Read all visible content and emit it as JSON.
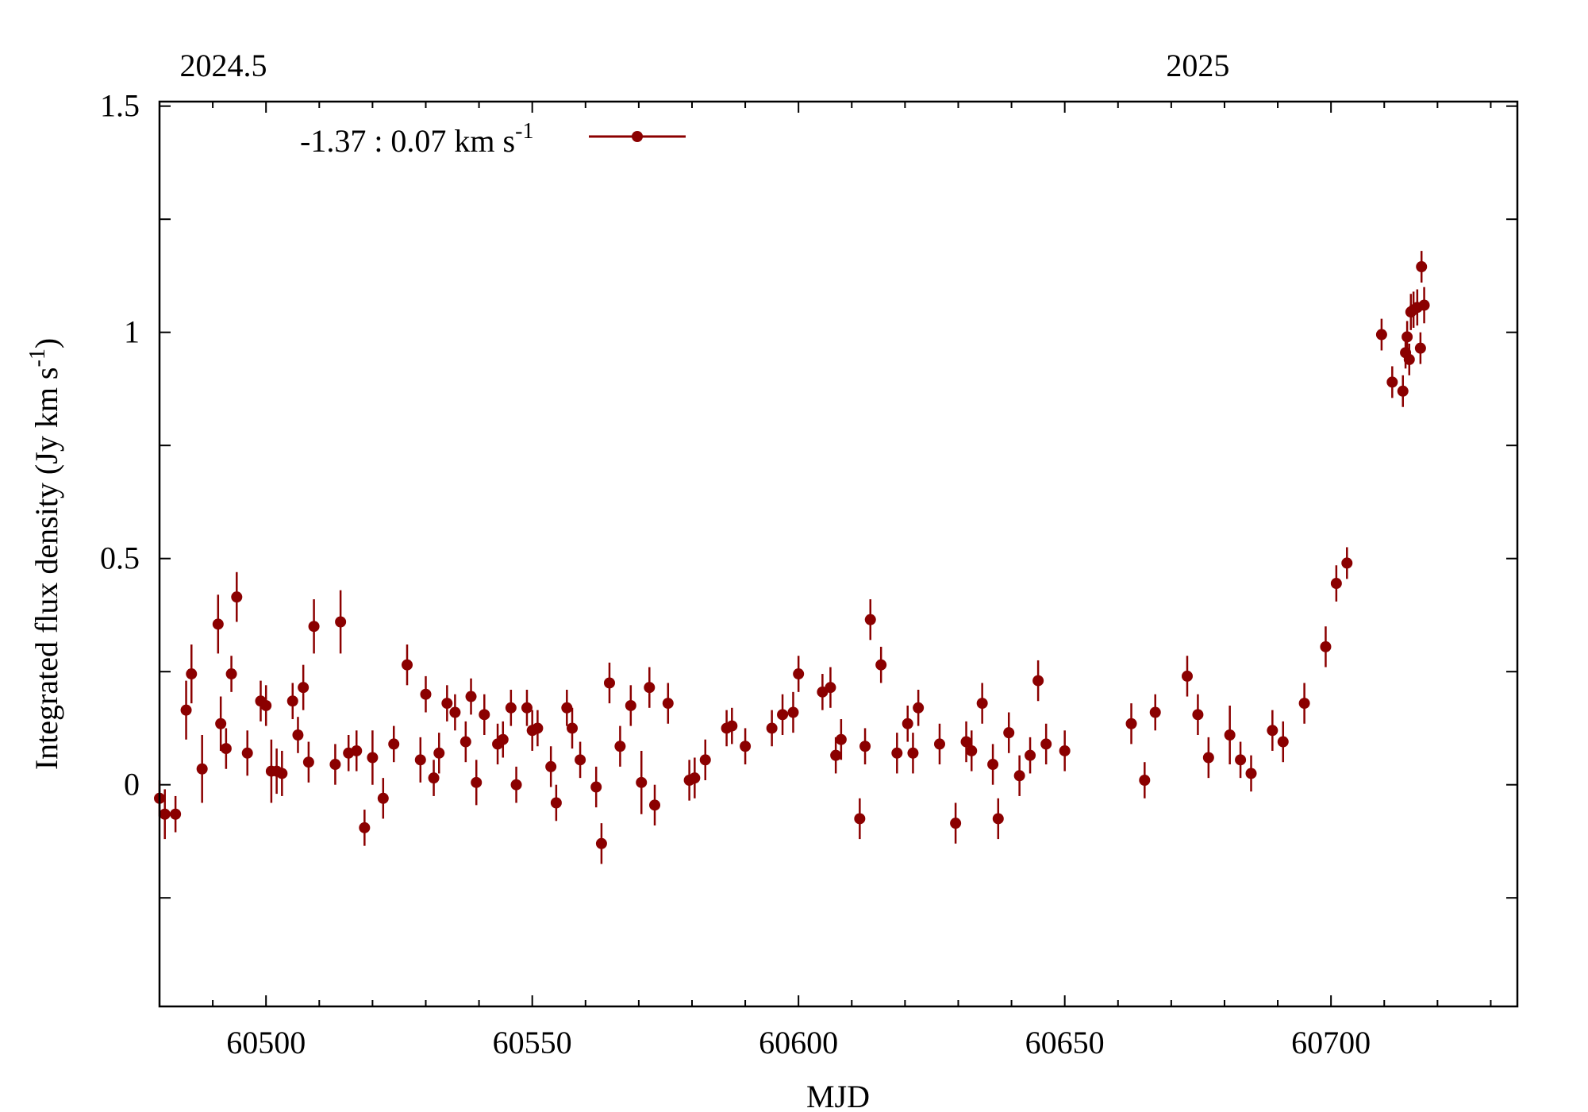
{
  "chart_data": {
    "type": "scatter",
    "xlabel": "MJD",
    "ylabel": "Integrated flux density (Jy km s",
    "ylabel_sup": "-1",
    "ylabel_close": ")",
    "xlim": [
      60480,
      60735
    ],
    "ylim": [
      -0.49,
      1.51
    ],
    "x_ticks": [
      60500,
      60550,
      60600,
      60650,
      60700
    ],
    "x_minor_ticks": [
      60490,
      60510,
      60520,
      60530,
      60540,
      60560,
      60570,
      60580,
      60590,
      60610,
      60620,
      60630,
      60640,
      60660,
      60670,
      60680,
      60690,
      60710,
      60720,
      60730
    ],
    "y_ticks": [
      0,
      0.5,
      1,
      1.5
    ],
    "y_tick_labels": [
      "0",
      "0.5",
      "1",
      "1.5"
    ],
    "y_minor_ticks": [
      -0.25,
      0.25,
      0.75,
      1.25
    ],
    "top_axis": {
      "ticks": [
        60492,
        60675
      ],
      "labels": [
        "2024.5",
        "2025"
      ]
    },
    "legend": {
      "position": "top-left",
      "symbol": "point-with-errorbar"
    },
    "series": [
      {
        "name": "-1.37 : 0.07 km s",
        "name_sup": "-1",
        "color": "#8b0000",
        "points": [
          {
            "x": 60480,
            "y": -0.03,
            "err": 0.04
          },
          {
            "x": 60481,
            "y": -0.065,
            "err": 0.055
          },
          {
            "x": 60483,
            "y": -0.065,
            "err": 0.04
          },
          {
            "x": 60485,
            "y": 0.165,
            "err": 0.065
          },
          {
            "x": 60486,
            "y": 0.245,
            "err": 0.065
          },
          {
            "x": 60488,
            "y": 0.035,
            "err": 0.075
          },
          {
            "x": 60491,
            "y": 0.355,
            "err": 0.065
          },
          {
            "x": 60491.5,
            "y": 0.135,
            "err": 0.06
          },
          {
            "x": 60492.5,
            "y": 0.08,
            "err": 0.045
          },
          {
            "x": 60493.5,
            "y": 0.245,
            "err": 0.04
          },
          {
            "x": 60494.5,
            "y": 0.415,
            "err": 0.055
          },
          {
            "x": 60496.5,
            "y": 0.07,
            "err": 0.05
          },
          {
            "x": 60499,
            "y": 0.185,
            "err": 0.045
          },
          {
            "x": 60500,
            "y": 0.175,
            "err": 0.045
          },
          {
            "x": 60501,
            "y": 0.03,
            "err": 0.07
          },
          {
            "x": 60502,
            "y": 0.03,
            "err": 0.05
          },
          {
            "x": 60503,
            "y": 0.025,
            "err": 0.05
          },
          {
            "x": 60505,
            "y": 0.185,
            "err": 0.04
          },
          {
            "x": 60506,
            "y": 0.11,
            "err": 0.04
          },
          {
            "x": 60507,
            "y": 0.215,
            "err": 0.05
          },
          {
            "x": 60508,
            "y": 0.05,
            "err": 0.045
          },
          {
            "x": 60509,
            "y": 0.35,
            "err": 0.06
          },
          {
            "x": 60513,
            "y": 0.045,
            "err": 0.045
          },
          {
            "x": 60514,
            "y": 0.36,
            "err": 0.07
          },
          {
            "x": 60515.5,
            "y": 0.07,
            "err": 0.04
          },
          {
            "x": 60517,
            "y": 0.075,
            "err": 0.045
          },
          {
            "x": 60518.5,
            "y": -0.095,
            "err": 0.04
          },
          {
            "x": 60520,
            "y": 0.06,
            "err": 0.06
          },
          {
            "x": 60522,
            "y": -0.03,
            "err": 0.045
          },
          {
            "x": 60524,
            "y": 0.09,
            "err": 0.04
          },
          {
            "x": 60526.5,
            "y": 0.265,
            "err": 0.045
          },
          {
            "x": 60529,
            "y": 0.055,
            "err": 0.05
          },
          {
            "x": 60530,
            "y": 0.2,
            "err": 0.04
          },
          {
            "x": 60531.5,
            "y": 0.015,
            "err": 0.04
          },
          {
            "x": 60532.5,
            "y": 0.07,
            "err": 0.045
          },
          {
            "x": 60534,
            "y": 0.18,
            "err": 0.04
          },
          {
            "x": 60535.5,
            "y": 0.16,
            "err": 0.04
          },
          {
            "x": 60537.5,
            "y": 0.095,
            "err": 0.045
          },
          {
            "x": 60538.5,
            "y": 0.195,
            "err": 0.04
          },
          {
            "x": 60539.5,
            "y": 0.005,
            "err": 0.05
          },
          {
            "x": 60541,
            "y": 0.155,
            "err": 0.045
          },
          {
            "x": 60543.5,
            "y": 0.09,
            "err": 0.045
          },
          {
            "x": 60544.5,
            "y": 0.1,
            "err": 0.04
          },
          {
            "x": 60546,
            "y": 0.17,
            "err": 0.04
          },
          {
            "x": 60547,
            "y": 0.0,
            "err": 0.04
          },
          {
            "x": 60549,
            "y": 0.17,
            "err": 0.04
          },
          {
            "x": 60550,
            "y": 0.12,
            "err": 0.045
          },
          {
            "x": 60551,
            "y": 0.125,
            "err": 0.04
          },
          {
            "x": 60553.5,
            "y": 0.04,
            "err": 0.045
          },
          {
            "x": 60554.5,
            "y": -0.04,
            "err": 0.04
          },
          {
            "x": 60556.5,
            "y": 0.17,
            "err": 0.04
          },
          {
            "x": 60557.5,
            "y": 0.125,
            "err": 0.045
          },
          {
            "x": 60559,
            "y": 0.055,
            "err": 0.04
          },
          {
            "x": 60562,
            "y": -0.005,
            "err": 0.045
          },
          {
            "x": 60563,
            "y": -0.13,
            "err": 0.045
          },
          {
            "x": 60564.5,
            "y": 0.225,
            "err": 0.045
          },
          {
            "x": 60566.5,
            "y": 0.085,
            "err": 0.045
          },
          {
            "x": 60568.5,
            "y": 0.175,
            "err": 0.045
          },
          {
            "x": 60570.5,
            "y": 0.005,
            "err": 0.07
          },
          {
            "x": 60572,
            "y": 0.215,
            "err": 0.045
          },
          {
            "x": 60573,
            "y": -0.045,
            "err": 0.045
          },
          {
            "x": 60575.5,
            "y": 0.18,
            "err": 0.045
          },
          {
            "x": 60579.5,
            "y": 0.01,
            "err": 0.045
          },
          {
            "x": 60580.5,
            "y": 0.015,
            "err": 0.045
          },
          {
            "x": 60582.5,
            "y": 0.055,
            "err": 0.045
          },
          {
            "x": 60586.5,
            "y": 0.125,
            "err": 0.04
          },
          {
            "x": 60587.5,
            "y": 0.13,
            "err": 0.04
          },
          {
            "x": 60590,
            "y": 0.085,
            "err": 0.04
          },
          {
            "x": 60595,
            "y": 0.125,
            "err": 0.04
          },
          {
            "x": 60597,
            "y": 0.155,
            "err": 0.045
          },
          {
            "x": 60599,
            "y": 0.16,
            "err": 0.045
          },
          {
            "x": 60600,
            "y": 0.245,
            "err": 0.04
          },
          {
            "x": 60604.5,
            "y": 0.205,
            "err": 0.04
          },
          {
            "x": 60606,
            "y": 0.215,
            "err": 0.045
          },
          {
            "x": 60607,
            "y": 0.065,
            "err": 0.04
          },
          {
            "x": 60608,
            "y": 0.1,
            "err": 0.045
          },
          {
            "x": 60611.5,
            "y": -0.075,
            "err": 0.045
          },
          {
            "x": 60612.5,
            "y": 0.085,
            "err": 0.04
          },
          {
            "x": 60613.5,
            "y": 0.365,
            "err": 0.045
          },
          {
            "x": 60615.5,
            "y": 0.265,
            "err": 0.04
          },
          {
            "x": 60618.5,
            "y": 0.07,
            "err": 0.045
          },
          {
            "x": 60620.5,
            "y": 0.135,
            "err": 0.04
          },
          {
            "x": 60621.5,
            "y": 0.07,
            "err": 0.045
          },
          {
            "x": 60622.5,
            "y": 0.17,
            "err": 0.04
          },
          {
            "x": 60626.5,
            "y": 0.09,
            "err": 0.045
          },
          {
            "x": 60629.5,
            "y": -0.085,
            "err": 0.045
          },
          {
            "x": 60631.5,
            "y": 0.095,
            "err": 0.045
          },
          {
            "x": 60632.5,
            "y": 0.075,
            "err": 0.045
          },
          {
            "x": 60634.5,
            "y": 0.18,
            "err": 0.045
          },
          {
            "x": 60636.5,
            "y": 0.045,
            "err": 0.045
          },
          {
            "x": 60637.5,
            "y": -0.075,
            "err": 0.045
          },
          {
            "x": 60639.5,
            "y": 0.115,
            "err": 0.045
          },
          {
            "x": 60641.5,
            "y": 0.02,
            "err": 0.045
          },
          {
            "x": 60643.5,
            "y": 0.065,
            "err": 0.04
          },
          {
            "x": 60645,
            "y": 0.23,
            "err": 0.045
          },
          {
            "x": 60646.5,
            "y": 0.09,
            "err": 0.045
          },
          {
            "x": 60650,
            "y": 0.075,
            "err": 0.045
          },
          {
            "x": 60662.5,
            "y": 0.135,
            "err": 0.045
          },
          {
            "x": 60665,
            "y": 0.01,
            "err": 0.04
          },
          {
            "x": 60667,
            "y": 0.16,
            "err": 0.04
          },
          {
            "x": 60673,
            "y": 0.24,
            "err": 0.045
          },
          {
            "x": 60675,
            "y": 0.155,
            "err": 0.045
          },
          {
            "x": 60677,
            "y": 0.06,
            "err": 0.045
          },
          {
            "x": 60681,
            "y": 0.11,
            "err": 0.065
          },
          {
            "x": 60683,
            "y": 0.055,
            "err": 0.04
          },
          {
            "x": 60685,
            "y": 0.025,
            "err": 0.04
          },
          {
            "x": 60689,
            "y": 0.12,
            "err": 0.045
          },
          {
            "x": 60691,
            "y": 0.095,
            "err": 0.045
          },
          {
            "x": 60695,
            "y": 0.18,
            "err": 0.045
          },
          {
            "x": 60699,
            "y": 0.305,
            "err": 0.045
          },
          {
            "x": 60701,
            "y": 0.445,
            "err": 0.04
          },
          {
            "x": 60703,
            "y": 0.49,
            "err": 0.035
          },
          {
            "x": 60709.5,
            "y": 0.995,
            "err": 0.035
          },
          {
            "x": 60711.5,
            "y": 0.89,
            "err": 0.035
          },
          {
            "x": 60713.5,
            "y": 0.87,
            "err": 0.035
          },
          {
            "x": 60714,
            "y": 0.955,
            "err": 0.035
          },
          {
            "x": 60714.3,
            "y": 0.99,
            "err": 0.035
          },
          {
            "x": 60714.7,
            "y": 0.94,
            "err": 0.035
          },
          {
            "x": 60715,
            "y": 1.045,
            "err": 0.04
          },
          {
            "x": 60715.5,
            "y": 1.05,
            "err": 0.04
          },
          {
            "x": 60716.2,
            "y": 1.055,
            "err": 0.04
          },
          {
            "x": 60716.8,
            "y": 0.965,
            "err": 0.035
          },
          {
            "x": 60717,
            "y": 1.145,
            "err": 0.035
          },
          {
            "x": 60717.5,
            "y": 1.06,
            "err": 0.04
          }
        ]
      }
    ]
  }
}
